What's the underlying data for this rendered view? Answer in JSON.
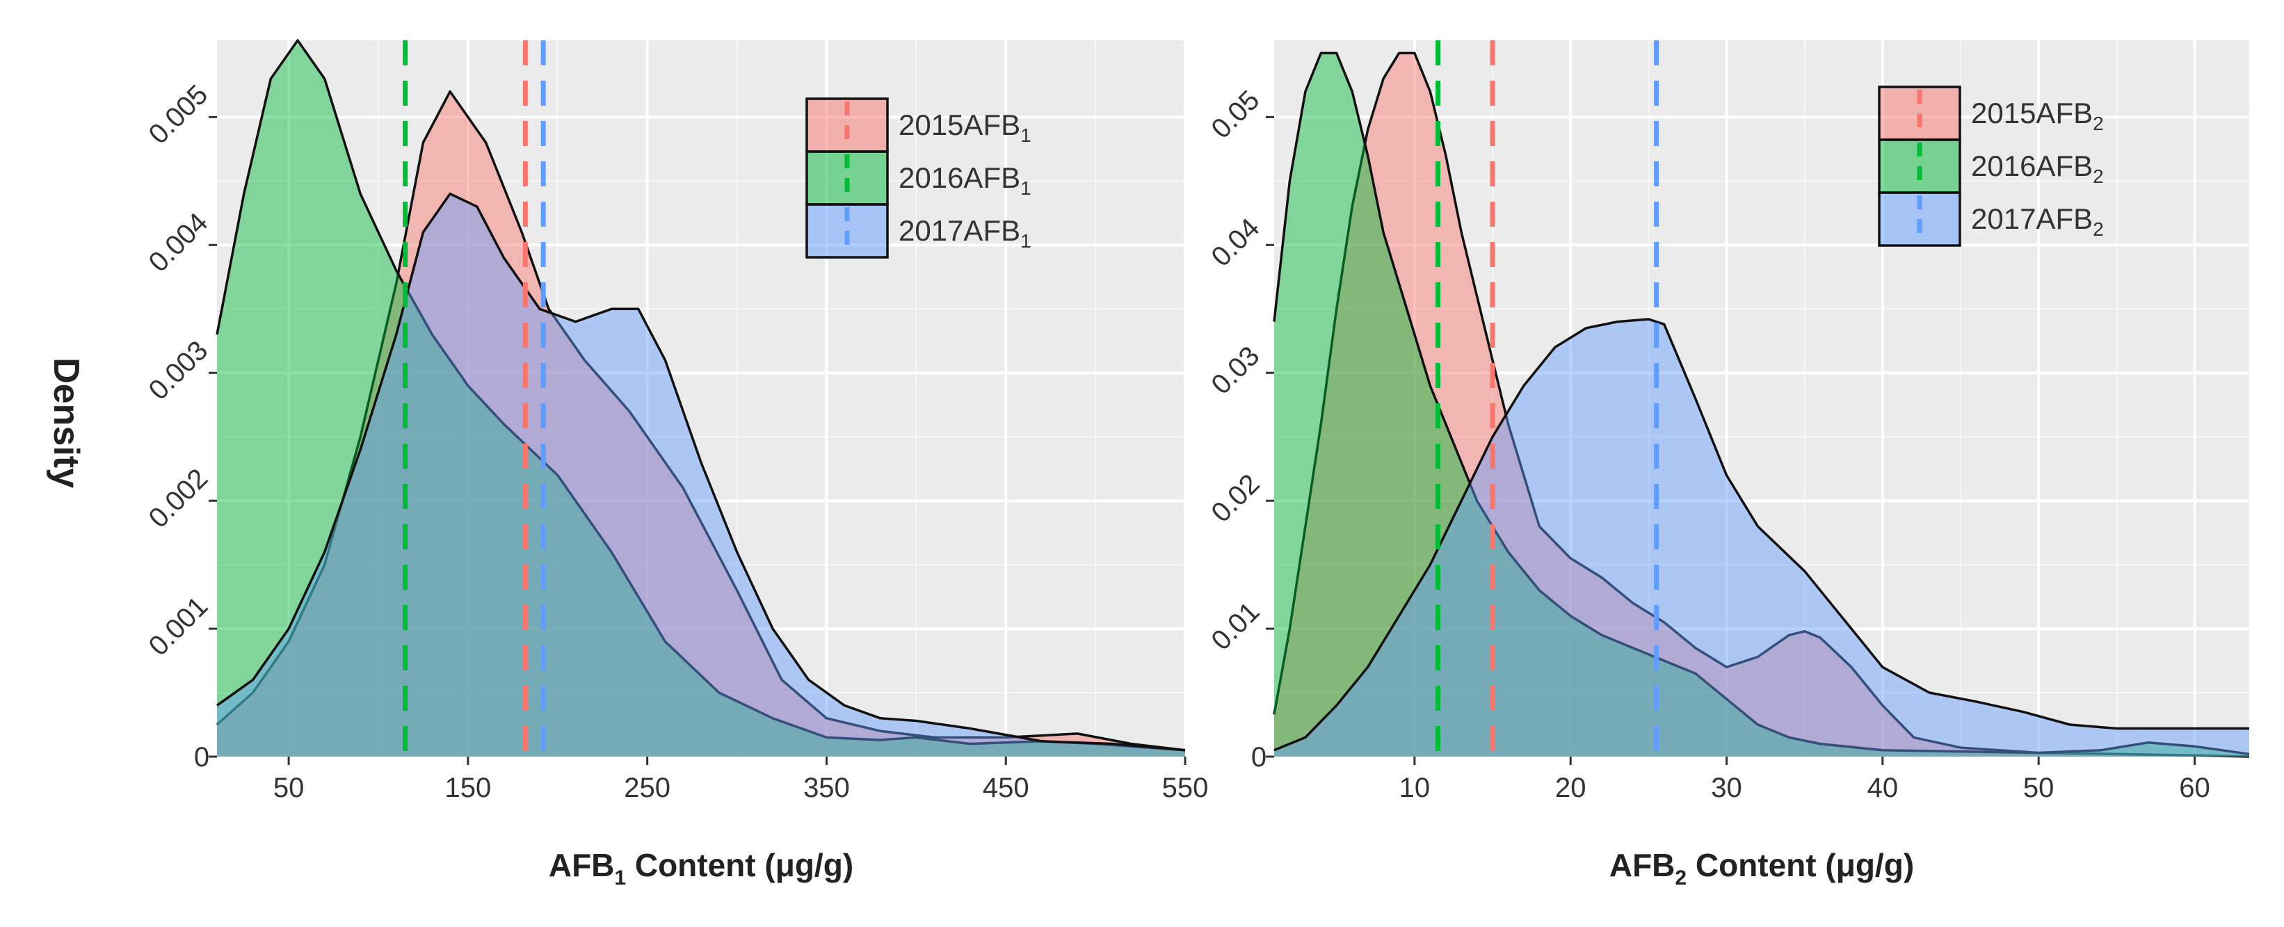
{
  "figure": {
    "ylabel": "Density"
  },
  "chart_data": [
    {
      "type": "area",
      "subtype": "density",
      "xlabel": {
        "pre": "AFB",
        "sub": "1",
        "post": " Content (μg/g)"
      },
      "ylabel": "Density",
      "xlim": [
        10,
        550
      ],
      "ylim": [
        0,
        0.0056
      ],
      "xticks": [
        50,
        150,
        250,
        350,
        450,
        550
      ],
      "yticks": [
        0,
        0.001,
        0.002,
        0.003,
        0.004,
        0.005
      ],
      "ytick_labels": [
        "0",
        "0.001",
        "0.002",
        "0.003",
        "0.004",
        "0.005"
      ],
      "grid": true,
      "legend_position": "top-right",
      "series": [
        {
          "name": "2015AFB1",
          "legend": {
            "pre": "2015AFB",
            "sub": "1"
          },
          "color": "#F8766D",
          "mean": 182,
          "points": [
            [
              10,
              0.00025
            ],
            [
              30,
              0.0005
            ],
            [
              50,
              0.0009
            ],
            [
              70,
              0.0015
            ],
            [
              90,
              0.0025
            ],
            [
              110,
              0.0037
            ],
            [
              125,
              0.0048
            ],
            [
              140,
              0.0052
            ],
            [
              160,
              0.0048
            ],
            [
              180,
              0.0041
            ],
            [
              195,
              0.0035
            ],
            [
              215,
              0.0031
            ],
            [
              240,
              0.0027
            ],
            [
              270,
              0.0021
            ],
            [
              300,
              0.0013
            ],
            [
              325,
              0.0006
            ],
            [
              350,
              0.0003
            ],
            [
              380,
              0.0002
            ],
            [
              410,
              0.00015
            ],
            [
              450,
              0.00015
            ],
            [
              490,
              0.00018
            ],
            [
              520,
              0.0001
            ],
            [
              550,
              5e-05
            ]
          ]
        },
        {
          "name": "2016AFB1",
          "legend": {
            "pre": "2016AFB",
            "sub": "1"
          },
          "color": "#00BA38",
          "mean": 115,
          "points": [
            [
              10,
              0.0033
            ],
            [
              25,
              0.0044
            ],
            [
              40,
              0.0053
            ],
            [
              55,
              0.0056
            ],
            [
              70,
              0.0053
            ],
            [
              90,
              0.0044
            ],
            [
              110,
              0.0038
            ],
            [
              130,
              0.0033
            ],
            [
              150,
              0.0029
            ],
            [
              170,
              0.0026
            ],
            [
              200,
              0.0022
            ],
            [
              230,
              0.0016
            ],
            [
              260,
              0.0009
            ],
            [
              290,
              0.0005
            ],
            [
              320,
              0.0003
            ],
            [
              350,
              0.00015
            ],
            [
              380,
              0.00013
            ],
            [
              400,
              0.00015
            ],
            [
              430,
              0.0001
            ],
            [
              470,
              0.00012
            ],
            [
              500,
              0.0001
            ],
            [
              550,
              5e-05
            ]
          ]
        },
        {
          "name": "2017AFB1",
          "legend": {
            "pre": "2017AFB",
            "sub": "1"
          },
          "color": "#619CFF",
          "mean": 192,
          "points": [
            [
              10,
              0.0004
            ],
            [
              30,
              0.0006
            ],
            [
              50,
              0.001
            ],
            [
              70,
              0.0016
            ],
            [
              90,
              0.0024
            ],
            [
              110,
              0.0033
            ],
            [
              125,
              0.0041
            ],
            [
              140,
              0.0044
            ],
            [
              155,
              0.0043
            ],
            [
              170,
              0.0039
            ],
            [
              190,
              0.0035
            ],
            [
              210,
              0.0034
            ],
            [
              230,
              0.0035
            ],
            [
              245,
              0.0035
            ],
            [
              260,
              0.0031
            ],
            [
              280,
              0.0023
            ],
            [
              300,
              0.0016
            ],
            [
              320,
              0.001
            ],
            [
              340,
              0.0006
            ],
            [
              360,
              0.0004
            ],
            [
              380,
              0.0003
            ],
            [
              400,
              0.00028
            ],
            [
              430,
              0.00022
            ],
            [
              470,
              0.00012
            ],
            [
              510,
              0.0001
            ],
            [
              550,
              5e-05
            ]
          ]
        }
      ]
    },
    {
      "type": "area",
      "subtype": "density",
      "xlabel": {
        "pre": "AFB",
        "sub": "2",
        "post": " Content (μg/g)"
      },
      "ylabel": "Density",
      "xlim": [
        1,
        63.5
      ],
      "ylim": [
        0,
        0.056
      ],
      "xticks": [
        10,
        20,
        30,
        40,
        50,
        60
      ],
      "yticks": [
        0,
        0.01,
        0.02,
        0.03,
        0.04,
        0.05
      ],
      "ytick_labels": [
        "0",
        "0.01",
        "0.02",
        "0.03",
        "0.04",
        "0.05"
      ],
      "grid": true,
      "legend_position": "top-right",
      "series": [
        {
          "name": "2015AFB2",
          "legend": {
            "pre": "2015AFB",
            "sub": "2"
          },
          "color": "#F8766D",
          "mean": 15,
          "points": [
            [
              1,
              0.0033
            ],
            [
              2,
              0.01
            ],
            [
              3,
              0.018
            ],
            [
              4,
              0.026
            ],
            [
              5,
              0.035
            ],
            [
              6,
              0.043
            ],
            [
              7,
              0.049
            ],
            [
              8,
              0.053
            ],
            [
              9,
              0.055
            ],
            [
              10,
              0.055
            ],
            [
              11,
              0.052
            ],
            [
              12,
              0.047
            ],
            [
              13,
              0.041
            ],
            [
              14,
              0.036
            ],
            [
              15,
              0.031
            ],
            [
              16,
              0.026
            ],
            [
              17,
              0.022
            ],
            [
              18,
              0.018
            ],
            [
              20,
              0.0155
            ],
            [
              22,
              0.014
            ],
            [
              24,
              0.012
            ],
            [
              26,
              0.0105
            ],
            [
              28,
              0.0085
            ],
            [
              30,
              0.007
            ],
            [
              32,
              0.0078
            ],
            [
              34,
              0.0095
            ],
            [
              35,
              0.0098
            ],
            [
              36,
              0.0093
            ],
            [
              38,
              0.007
            ],
            [
              40,
              0.004
            ],
            [
              42,
              0.0015
            ],
            [
              45,
              0.0007
            ],
            [
              50,
              0.0003
            ],
            [
              55,
              0.0002
            ],
            [
              60,
              0.0001
            ],
            [
              63.5,
              0
            ]
          ]
        },
        {
          "name": "2016AFB2",
          "legend": {
            "pre": "2016AFB",
            "sub": "2"
          },
          "color": "#00BA38",
          "mean": 11.5,
          "points": [
            [
              1,
              0.034
            ],
            [
              2,
              0.045
            ],
            [
              3,
              0.052
            ],
            [
              4,
              0.055
            ],
            [
              5,
              0.055
            ],
            [
              6,
              0.052
            ],
            [
              7,
              0.047
            ],
            [
              8,
              0.041
            ],
            [
              9,
              0.037
            ],
            [
              10,
              0.033
            ],
            [
              11,
              0.029
            ],
            [
              12,
              0.026
            ],
            [
              13,
              0.023
            ],
            [
              14,
              0.02
            ],
            [
              15,
              0.018
            ],
            [
              16,
              0.016
            ],
            [
              18,
              0.013
            ],
            [
              20,
              0.011
            ],
            [
              22,
              0.0095
            ],
            [
              24,
              0.0085
            ],
            [
              26,
              0.0075
            ],
            [
              28,
              0.0065
            ],
            [
              30,
              0.0045
            ],
            [
              32,
              0.0025
            ],
            [
              34,
              0.0015
            ],
            [
              36,
              0.001
            ],
            [
              40,
              0.0005
            ],
            [
              45,
              0.0004
            ],
            [
              50,
              0.0003
            ],
            [
              54,
              0.0005
            ],
            [
              57,
              0.0011
            ],
            [
              60,
              0.0008
            ],
            [
              63.5,
              0.0002
            ]
          ]
        },
        {
          "name": "2017AFB2",
          "legend": {
            "pre": "2017AFB",
            "sub": "2"
          },
          "color": "#619CFF",
          "mean": 25.5,
          "points": [
            [
              1,
              0.0005
            ],
            [
              3,
              0.0015
            ],
            [
              5,
              0.004
            ],
            [
              7,
              0.007
            ],
            [
              9,
              0.011
            ],
            [
              11,
              0.015
            ],
            [
              13,
              0.02
            ],
            [
              15,
              0.025
            ],
            [
              17,
              0.029
            ],
            [
              19,
              0.032
            ],
            [
              21,
              0.0335
            ],
            [
              23,
              0.034
            ],
            [
              25,
              0.0342
            ],
            [
              26,
              0.0338
            ],
            [
              28,
              0.028
            ],
            [
              30,
              0.022
            ],
            [
              32,
              0.018
            ],
            [
              35,
              0.0145
            ],
            [
              38,
              0.01
            ],
            [
              40,
              0.007
            ],
            [
              43,
              0.005
            ],
            [
              46,
              0.0043
            ],
            [
              49,
              0.0035
            ],
            [
              52,
              0.0025
            ],
            [
              55,
              0.0022
            ],
            [
              58,
              0.0022
            ],
            [
              63.5,
              0.0022
            ]
          ]
        }
      ]
    }
  ]
}
